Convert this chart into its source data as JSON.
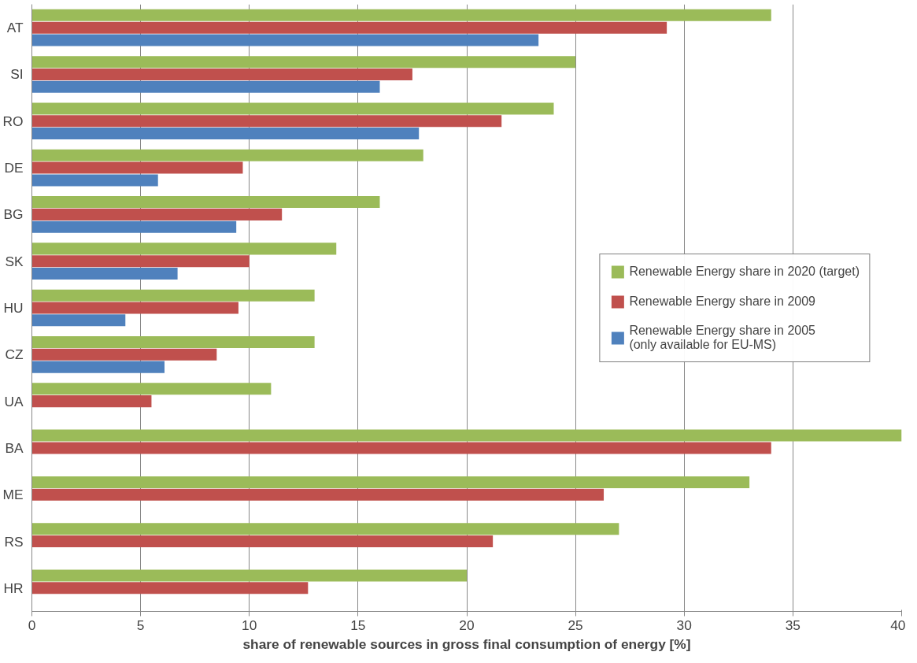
{
  "chart_data": {
    "type": "bar",
    "orientation": "horizontal",
    "xlabel": "share of renewable sources in gross final consumption of energy [%]",
    "categories": [
      "AT",
      "SI",
      "RO",
      "DE",
      "BG",
      "SK",
      "HU",
      "CZ",
      "UA",
      "BA",
      "ME",
      "RS",
      "HR"
    ],
    "series": [
      {
        "name": "Renewable Energy share in 2020 (target)",
        "color": "#9bbb59",
        "values": [
          34,
          25,
          24,
          18,
          16,
          14,
          13,
          13,
          11,
          40,
          33,
          27,
          20
        ]
      },
      {
        "name": "Renewable Energy share in 2009",
        "color": "#c0504d",
        "values": [
          29.2,
          17.5,
          21.6,
          9.7,
          11.5,
          10,
          9.5,
          8.5,
          5.5,
          34,
          26.3,
          21.2,
          12.7
        ]
      },
      {
        "name": "Renewable Energy share in 2005\n(only available for EU-MS)",
        "color": "#4f81bd",
        "values": [
          23.3,
          16,
          17.8,
          5.8,
          9.4,
          6.7,
          4.3,
          6.1,
          null,
          null,
          null,
          null,
          null
        ]
      }
    ],
    "xlim": [
      0,
      40
    ],
    "xticks": [
      0,
      5,
      10,
      15,
      20,
      25,
      30,
      35,
      40
    ],
    "grid": "x",
    "legend": "right"
  }
}
